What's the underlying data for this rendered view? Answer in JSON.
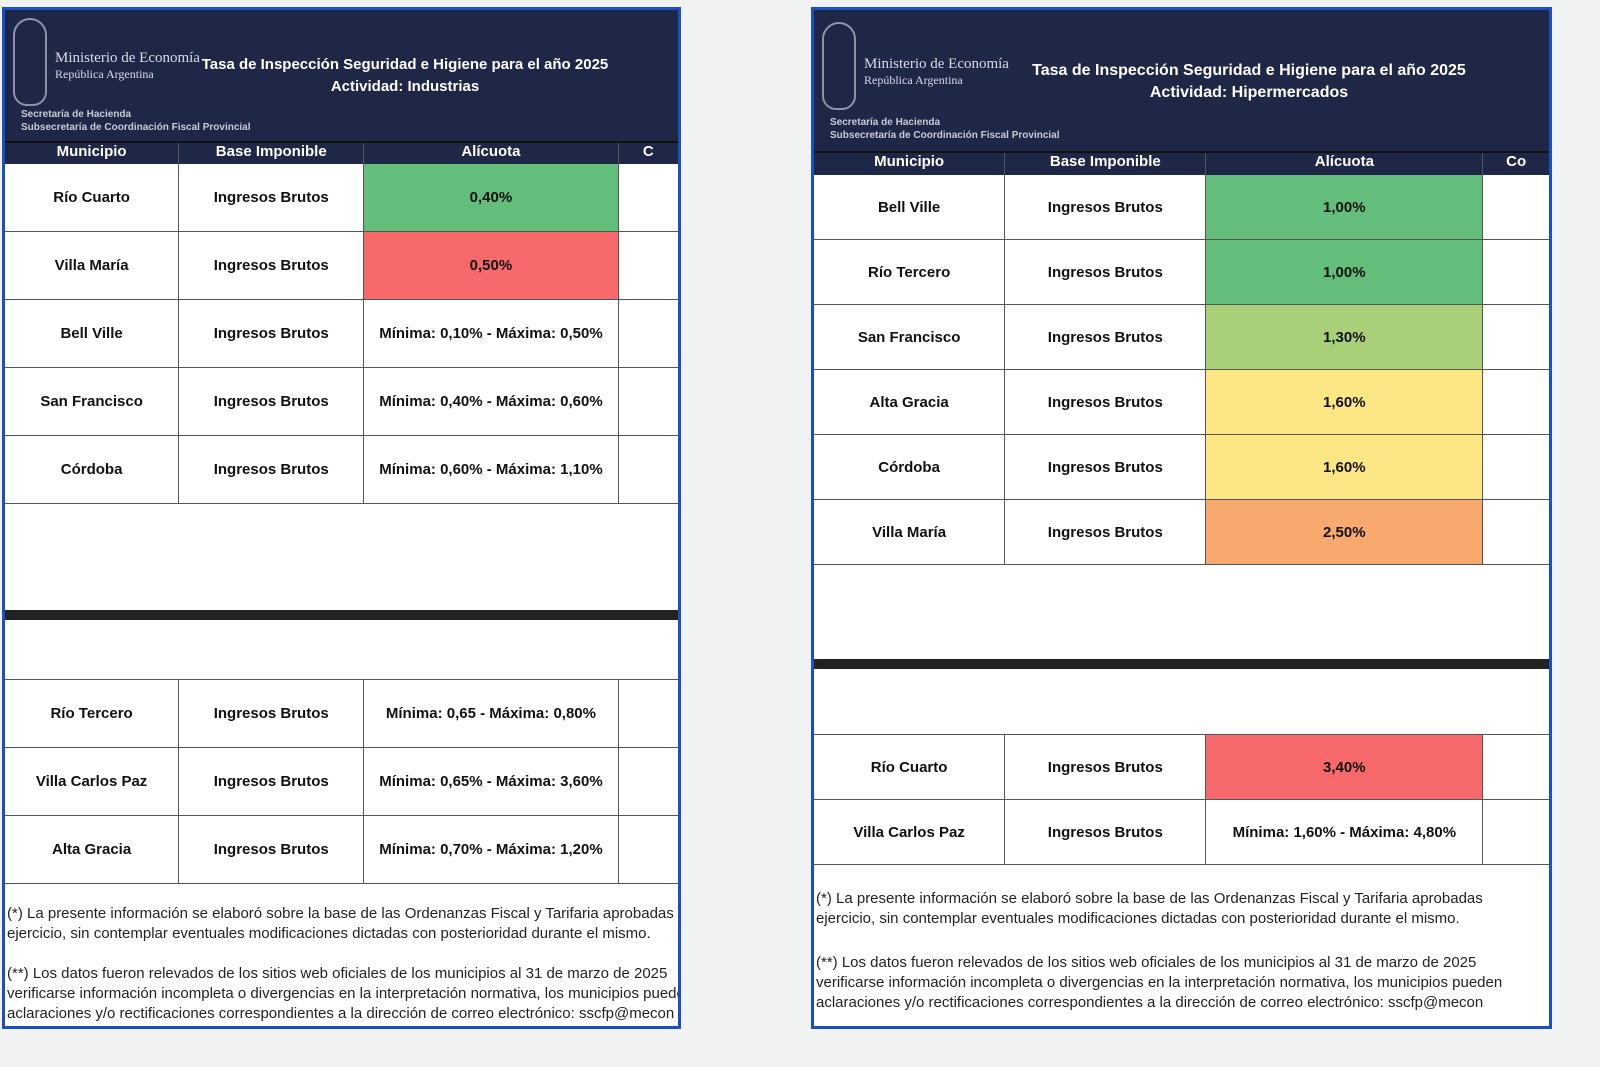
{
  "header": {
    "ministry": "Ministerio de Economía",
    "country": "República Argentina",
    "secretaria": "Secretaría de Hacienda",
    "subsecretaria": "Subsecretaría de Coordinación Fiscal Provincial",
    "logo": "escudo-argentina"
  },
  "columns": [
    "Municipio",
    "Base Imponible",
    "Alícuota",
    "C"
  ],
  "columns_right_last": "Co",
  "colors": {
    "green": "#63be7b",
    "light_green": "#a9cf79",
    "yellow": "#fde784",
    "orange": "#f8a96e",
    "red": "#f8696b",
    "navy": "#1f2747",
    "border": "#1b4fc4"
  },
  "left": {
    "title": "Tasa de Inspección Seguridad e Higiene para el año 2025",
    "activity": "Actividad: Industrias",
    "rows_top": [
      {
        "municipio": "Río Cuarto",
        "base": "Ingresos Brutos",
        "alicuota": "0,40%",
        "color": "#63be7b"
      },
      {
        "municipio": "Villa María",
        "base": "Ingresos Brutos",
        "alicuota": "0,50%",
        "color": "#f8696b"
      },
      {
        "municipio": "Bell Ville",
        "base": "Ingresos Brutos",
        "alicuota": "Mínima: 0,10% - Máxima: 0,50%",
        "color": ""
      },
      {
        "municipio": "San Francisco",
        "base": "Ingresos Brutos",
        "alicuota": "Mínima: 0,40% - Máxima: 0,60%",
        "color": ""
      },
      {
        "municipio": "Córdoba",
        "base": "Ingresos Brutos",
        "alicuota": "Mínima: 0,60% - Máxima: 1,10%",
        "color": ""
      }
    ],
    "rows_bottom": [
      {
        "municipio": "Río Tercero",
        "base": "Ingresos Brutos",
        "alicuota": "Mínima: 0,65 - Máxima: 0,80%",
        "color": ""
      },
      {
        "municipio": "Villa Carlos Paz",
        "base": "Ingresos Brutos",
        "alicuota": "Mínima: 0,65% - Máxima: 3,60%",
        "color": ""
      },
      {
        "municipio": "Alta Gracia",
        "base": "Ingresos Brutos",
        "alicuota": "Mínima: 0,70% - Máxima: 1,20%",
        "color": ""
      }
    ]
  },
  "right": {
    "title": "Tasa de Inspección Seguridad e Higiene para el año 2025",
    "activity": "Actividad: Hipermercados",
    "rows_top": [
      {
        "municipio": "Bell Ville",
        "base": "Ingresos Brutos",
        "alicuota": "1,00%",
        "color": "#63be7b"
      },
      {
        "municipio": "Río Tercero",
        "base": "Ingresos Brutos",
        "alicuota": "1,00%",
        "color": "#63be7b"
      },
      {
        "municipio": "San Francisco",
        "base": "Ingresos Brutos",
        "alicuota": "1,30%",
        "color": "#a9cf79"
      },
      {
        "municipio": "Alta Gracia",
        "base": "Ingresos Brutos",
        "alicuota": "1,60%",
        "color": "#fde784"
      },
      {
        "municipio": "Córdoba",
        "base": "Ingresos Brutos",
        "alicuota": "1,60%",
        "color": "#fde784"
      },
      {
        "municipio": "Villa María",
        "base": "Ingresos Brutos",
        "alicuota": "2,50%",
        "color": "#f8a96e"
      }
    ],
    "rows_bottom": [
      {
        "municipio": "Río Cuarto",
        "base": "Ingresos Brutos",
        "alicuota": "3,40%",
        "color": "#f8696b"
      },
      {
        "municipio": "Villa Carlos Paz",
        "base": "Ingresos Brutos",
        "alicuota": "Mínima: 1,60% - Máxima: 4,80%",
        "color": ""
      }
    ]
  },
  "notes": {
    "n1a": "(*) La presente información se elaboró sobre la base de las Ordenanzas Fiscal y Tarifaria aprobadas",
    "n1b": "ejercicio, sin contemplar eventuales modificaciones dictadas con posterioridad durante el mismo.",
    "n2a": "(**) Los datos fueron relevados de los sitios web oficiales de los municipios al 31 de marzo de 2025",
    "n2b": "verificarse información incompleta o divergencias en la interpretación normativa, los municipios pueden",
    "n2c": "aclaraciones y/o rectificaciones correspondientes a la dirección de correo electrónico: sscfp@mecon"
  }
}
